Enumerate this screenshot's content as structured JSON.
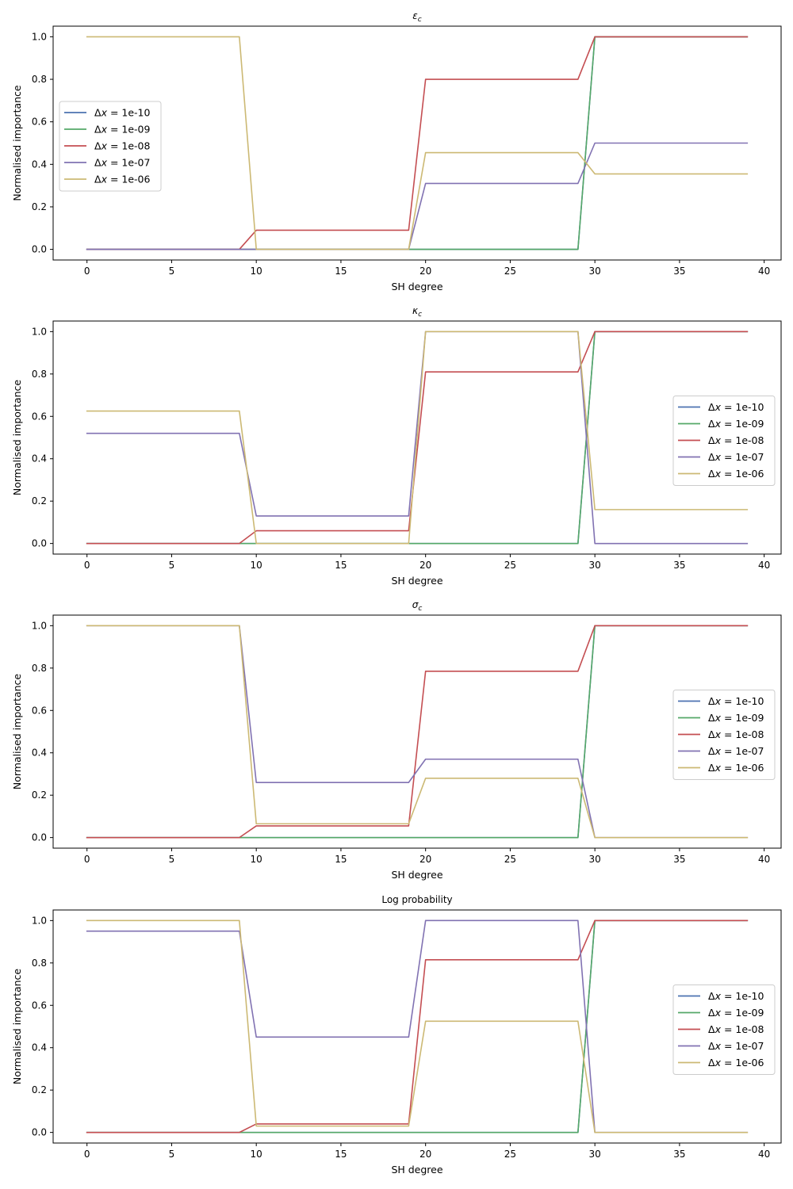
{
  "chart_data": [
    {
      "type": "line",
      "title": "ε_c",
      "title_main": "ε",
      "title_sub": "c",
      "xlabel": "SH degree",
      "ylabel": "Normalised importance",
      "xlim": [
        -2,
        41
      ],
      "ylim": [
        -0.05,
        1.05
      ],
      "xticks": [
        0,
        5,
        10,
        15,
        20,
        25,
        30,
        35,
        40
      ],
      "yticks": [
        0.0,
        0.2,
        0.4,
        0.6,
        0.8,
        1.0
      ],
      "xtick_labels": [
        "0",
        "5",
        "10",
        "15",
        "20",
        "25",
        "30",
        "35",
        "40"
      ],
      "ytick_labels": [
        "0.0",
        "0.2",
        "0.4",
        "0.6",
        "0.8",
        "1.0"
      ],
      "legend_position": "center-left",
      "grid": false,
      "x": [
        0,
        9,
        10,
        19,
        20,
        29,
        30,
        39
      ],
      "series": [
        {
          "name": "Δx = 1e-10",
          "color": "#4c72b0",
          "values": [
            0,
            0,
            0,
            0,
            0,
            0,
            1.0,
            1.0
          ]
        },
        {
          "name": "Δx = 1e-09",
          "color": "#55a868",
          "values": [
            0,
            0,
            0,
            0,
            0,
            0,
            1.0,
            1.0
          ]
        },
        {
          "name": "Δx = 1e-08",
          "color": "#c44e52",
          "values": [
            0,
            0,
            0.09,
            0.09,
            0.8,
            0.8,
            1.0,
            1.0
          ]
        },
        {
          "name": "Δx = 1e-07",
          "color": "#8172b2",
          "values": [
            0,
            0,
            0,
            0,
            0.31,
            0.31,
            0.5,
            0.5
          ]
        },
        {
          "name": "Δx = 1e-06",
          "color": "#ccb974",
          "values": [
            1.0,
            1.0,
            0,
            0,
            0.455,
            0.455,
            0.355,
            0.355
          ]
        }
      ]
    },
    {
      "type": "line",
      "title": "κ_c",
      "title_main": "κ",
      "title_sub": "c",
      "xlabel": "SH degree",
      "ylabel": "Normalised importance",
      "xlim": [
        -2,
        41
      ],
      "ylim": [
        -0.05,
        1.05
      ],
      "xticks": [
        0,
        5,
        10,
        15,
        20,
        25,
        30,
        35,
        40
      ],
      "yticks": [
        0.0,
        0.2,
        0.4,
        0.6,
        0.8,
        1.0
      ],
      "xtick_labels": [
        "0",
        "5",
        "10",
        "15",
        "20",
        "25",
        "30",
        "35",
        "40"
      ],
      "ytick_labels": [
        "0.0",
        "0.2",
        "0.4",
        "0.6",
        "0.8",
        "1.0"
      ],
      "legend_position": "center-right",
      "grid": false,
      "x": [
        0,
        9,
        10,
        19,
        20,
        29,
        30,
        39
      ],
      "series": [
        {
          "name": "Δx = 1e-10",
          "color": "#4c72b0",
          "values": [
            0,
            0,
            0,
            0,
            0,
            0,
            1.0,
            1.0
          ]
        },
        {
          "name": "Δx = 1e-09",
          "color": "#55a868",
          "values": [
            0,
            0,
            0,
            0,
            0,
            0,
            1.0,
            1.0
          ]
        },
        {
          "name": "Δx = 1e-08",
          "color": "#c44e52",
          "values": [
            0,
            0,
            0.06,
            0.06,
            0.81,
            0.81,
            1.0,
            1.0
          ]
        },
        {
          "name": "Δx = 1e-07",
          "color": "#8172b2",
          "values": [
            0.52,
            0.52,
            0.13,
            0.13,
            1.0,
            1.0,
            0,
            0
          ]
        },
        {
          "name": "Δx = 1e-06",
          "color": "#ccb974",
          "values": [
            0.625,
            0.625,
            0,
            0,
            1.0,
            1.0,
            0.16,
            0.16
          ]
        }
      ]
    },
    {
      "type": "line",
      "title": "σ_c",
      "title_main": "σ",
      "title_sub": "c",
      "xlabel": "SH degree",
      "ylabel": "Normalised importance",
      "xlim": [
        -2,
        41
      ],
      "ylim": [
        -0.05,
        1.05
      ],
      "xticks": [
        0,
        5,
        10,
        15,
        20,
        25,
        30,
        35,
        40
      ],
      "yticks": [
        0.0,
        0.2,
        0.4,
        0.6,
        0.8,
        1.0
      ],
      "xtick_labels": [
        "0",
        "5",
        "10",
        "15",
        "20",
        "25",
        "30",
        "35",
        "40"
      ],
      "ytick_labels": [
        "0.0",
        "0.2",
        "0.4",
        "0.6",
        "0.8",
        "1.0"
      ],
      "legend_position": "center-right",
      "grid": false,
      "x": [
        0,
        9,
        10,
        19,
        20,
        29,
        30,
        39
      ],
      "series": [
        {
          "name": "Δx = 1e-10",
          "color": "#4c72b0",
          "values": [
            0,
            0,
            0,
            0,
            0,
            0,
            1.0,
            1.0
          ]
        },
        {
          "name": "Δx = 1e-09",
          "color": "#55a868",
          "values": [
            0,
            0,
            0,
            0,
            0,
            0,
            1.0,
            1.0
          ]
        },
        {
          "name": "Δx = 1e-08",
          "color": "#c44e52",
          "values": [
            0,
            0,
            0.055,
            0.055,
            0.785,
            0.785,
            1.0,
            1.0
          ]
        },
        {
          "name": "Δx = 1e-07",
          "color": "#8172b2",
          "values": [
            1.0,
            1.0,
            0.26,
            0.26,
            0.37,
            0.37,
            0,
            0
          ]
        },
        {
          "name": "Δx = 1e-06",
          "color": "#ccb974",
          "values": [
            1.0,
            1.0,
            0.065,
            0.065,
            0.28,
            0.28,
            0,
            0
          ]
        }
      ]
    },
    {
      "type": "line",
      "title": "Log probability",
      "title_main": "Log probability",
      "title_sub": "",
      "xlabel": "SH degree",
      "ylabel": "Normalised importance",
      "xlim": [
        -2,
        41
      ],
      "ylim": [
        -0.05,
        1.05
      ],
      "xticks": [
        0,
        5,
        10,
        15,
        20,
        25,
        30,
        35,
        40
      ],
      "yticks": [
        0.0,
        0.2,
        0.4,
        0.6,
        0.8,
        1.0
      ],
      "xtick_labels": [
        "0",
        "5",
        "10",
        "15",
        "20",
        "25",
        "30",
        "35",
        "40"
      ],
      "ytick_labels": [
        "0.0",
        "0.2",
        "0.4",
        "0.6",
        "0.8",
        "1.0"
      ],
      "legend_position": "center-right",
      "grid": false,
      "x": [
        0,
        9,
        10,
        19,
        20,
        29,
        30,
        39
      ],
      "series": [
        {
          "name": "Δx = 1e-10",
          "color": "#4c72b0",
          "values": [
            0,
            0,
            0,
            0,
            0,
            0,
            1.0,
            1.0
          ]
        },
        {
          "name": "Δx = 1e-09",
          "color": "#55a868",
          "values": [
            0,
            0,
            0,
            0,
            0,
            0,
            1.0,
            1.0
          ]
        },
        {
          "name": "Δx = 1e-08",
          "color": "#c44e52",
          "values": [
            0,
            0,
            0.04,
            0.04,
            0.815,
            0.815,
            1.0,
            1.0
          ]
        },
        {
          "name": "Δx = 1e-07",
          "color": "#8172b2",
          "values": [
            0.95,
            0.95,
            0.45,
            0.45,
            1.0,
            1.0,
            0,
            0
          ]
        },
        {
          "name": "Δx = 1e-06",
          "color": "#ccb974",
          "values": [
            1.0,
            1.0,
            0.03,
            0.03,
            0.525,
            0.525,
            0,
            0
          ]
        }
      ]
    }
  ]
}
